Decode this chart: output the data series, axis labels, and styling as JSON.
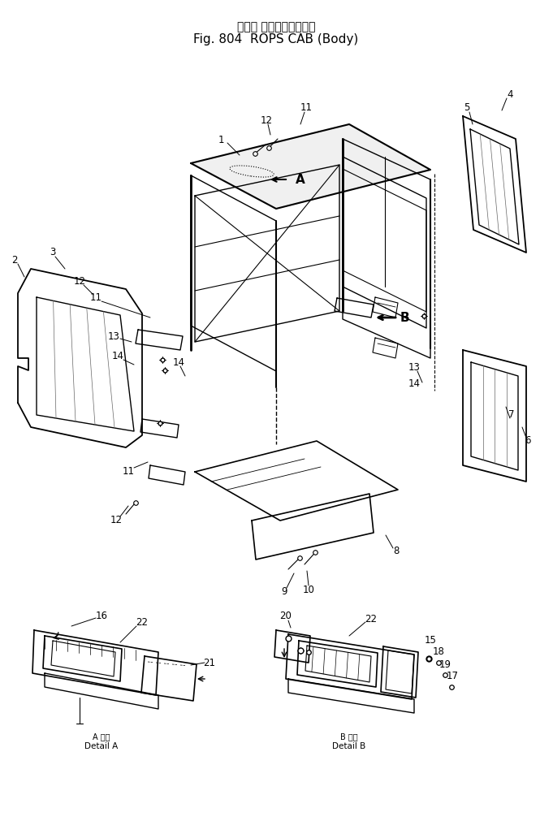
{
  "title_jp": "ロプス キャブ（ボデー）",
  "title_en": "Fig. 804  ROPS CAB (Body)",
  "bg_color": "#ffffff",
  "lc": "#000000",
  "fig_width": 6.81,
  "fig_height": 10.11,
  "dpi": 100,
  "detail_a_jp": "A 詳細",
  "detail_a_en": "Detail A",
  "detail_b_jp": "B 詳細",
  "detail_b_en": "Detail B"
}
